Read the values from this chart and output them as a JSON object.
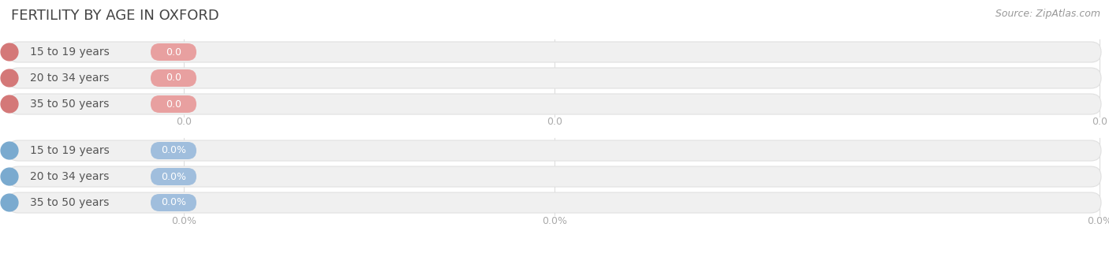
{
  "title": "FERTILITY BY AGE IN OXFORD",
  "source": "Source: ZipAtlas.com",
  "top_rows": [
    {
      "label": "15 to 19 years",
      "value_str": "0.0"
    },
    {
      "label": "20 to 34 years",
      "value_str": "0.0"
    },
    {
      "label": "35 to 50 years",
      "value_str": "0.0"
    }
  ],
  "bottom_rows": [
    {
      "label": "15 to 19 years",
      "value_str": "0.0%"
    },
    {
      "label": "20 to 34 years",
      "value_str": "0.0%"
    },
    {
      "label": "35 to 50 years",
      "value_str": "0.0%"
    }
  ],
  "top_badge_color": "#e8a0a0",
  "top_circle_color": "#d47878",
  "top_bg_color": "#f0f0f0",
  "top_bg_border": "#e0e0e0",
  "top_value_text_color": "#ffffff",
  "bottom_badge_color": "#a0bedd",
  "bottom_circle_color": "#7aaacf",
  "bottom_bg_color": "#f0f0f0",
  "bottom_bg_border": "#e0e0e0",
  "bottom_value_text_color": "#ffffff",
  "label_color": "#555555",
  "title_color": "#444444",
  "source_color": "#999999",
  "axis_label_color": "#aaaaaa",
  "grid_color": "#dddddd",
  "background_color": "#ffffff",
  "top_axis_ticks": [
    "0.0",
    "0.0",
    "0.0"
  ],
  "bottom_axis_ticks": [
    "0.0%",
    "0.0%",
    "0.0%"
  ]
}
